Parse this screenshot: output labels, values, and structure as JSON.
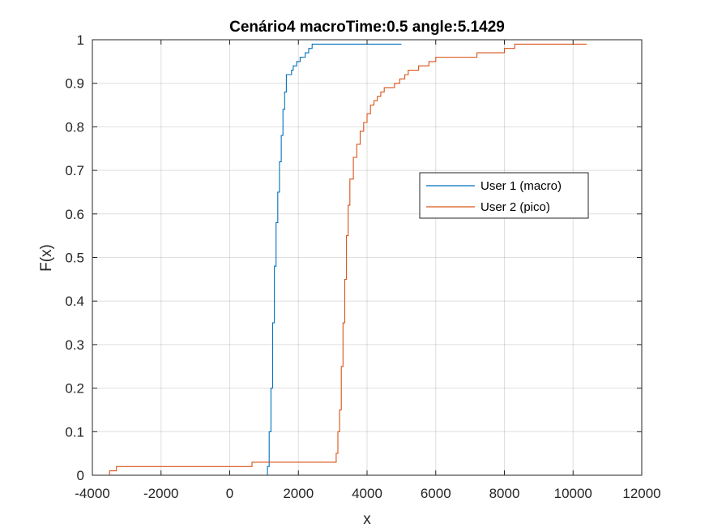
{
  "chart_data": {
    "type": "line",
    "step": true,
    "title": "Cenário4 macroTime:0.5 angle:5.1429",
    "xlabel": "x",
    "ylabel": "F(x)",
    "xlim": [
      -4000,
      12000
    ],
    "ylim": [
      0,
      1
    ],
    "xticks": [
      -4000,
      -2000,
      0,
      2000,
      4000,
      6000,
      8000,
      10000,
      12000
    ],
    "xtick_labels": [
      "-4000",
      "-2000",
      "0",
      "2000",
      "4000",
      "6000",
      "8000",
      "10000",
      "12000"
    ],
    "yticks": [
      0,
      0.1,
      0.2,
      0.3,
      0.4,
      0.5,
      0.6,
      0.7,
      0.8,
      0.9,
      1
    ],
    "ytick_labels": [
      "0",
      "0.1",
      "0.2",
      "0.3",
      "0.4",
      "0.5",
      "0.6",
      "0.7",
      "0.8",
      "0.9",
      "1"
    ],
    "grid": true,
    "legend_position": "upper-right-inside",
    "series": [
      {
        "name": "User 1 (macro)",
        "color": "#0072BD",
        "points": [
          [
            1050,
            0
          ],
          [
            1100,
            0.02
          ],
          [
            1150,
            0.1
          ],
          [
            1200,
            0.2
          ],
          [
            1250,
            0.35
          ],
          [
            1300,
            0.48
          ],
          [
            1350,
            0.58
          ],
          [
            1400,
            0.65
          ],
          [
            1450,
            0.72
          ],
          [
            1500,
            0.78
          ],
          [
            1550,
            0.84
          ],
          [
            1600,
            0.88
          ],
          [
            1650,
            0.92
          ],
          [
            1800,
            0.93
          ],
          [
            1850,
            0.94
          ],
          [
            1950,
            0.95
          ],
          [
            2050,
            0.96
          ],
          [
            2200,
            0.97
          ],
          [
            2300,
            0.98
          ],
          [
            2400,
            0.99
          ],
          [
            5000,
            0.99
          ]
        ]
      },
      {
        "name": "User 2 (pico)",
        "color": "#D95319",
        "points": [
          [
            -3600,
            0
          ],
          [
            -3500,
            0.01
          ],
          [
            -3300,
            0.02
          ],
          [
            600,
            0.02
          ],
          [
            650,
            0.03
          ],
          [
            3050,
            0.03
          ],
          [
            3100,
            0.05
          ],
          [
            3150,
            0.1
          ],
          [
            3200,
            0.15
          ],
          [
            3250,
            0.25
          ],
          [
            3300,
            0.35
          ],
          [
            3350,
            0.45
          ],
          [
            3400,
            0.55
          ],
          [
            3450,
            0.62
          ],
          [
            3500,
            0.68
          ],
          [
            3600,
            0.73
          ],
          [
            3700,
            0.76
          ],
          [
            3800,
            0.79
          ],
          [
            3900,
            0.81
          ],
          [
            4000,
            0.83
          ],
          [
            4100,
            0.85
          ],
          [
            4200,
            0.86
          ],
          [
            4300,
            0.87
          ],
          [
            4400,
            0.88
          ],
          [
            4500,
            0.89
          ],
          [
            4800,
            0.9
          ],
          [
            4950,
            0.91
          ],
          [
            5100,
            0.92
          ],
          [
            5200,
            0.93
          ],
          [
            5500,
            0.94
          ],
          [
            5800,
            0.95
          ],
          [
            6000,
            0.96
          ],
          [
            7200,
            0.97
          ],
          [
            8000,
            0.98
          ],
          [
            8300,
            0.99
          ],
          [
            10400,
            0.99
          ]
        ]
      }
    ]
  }
}
